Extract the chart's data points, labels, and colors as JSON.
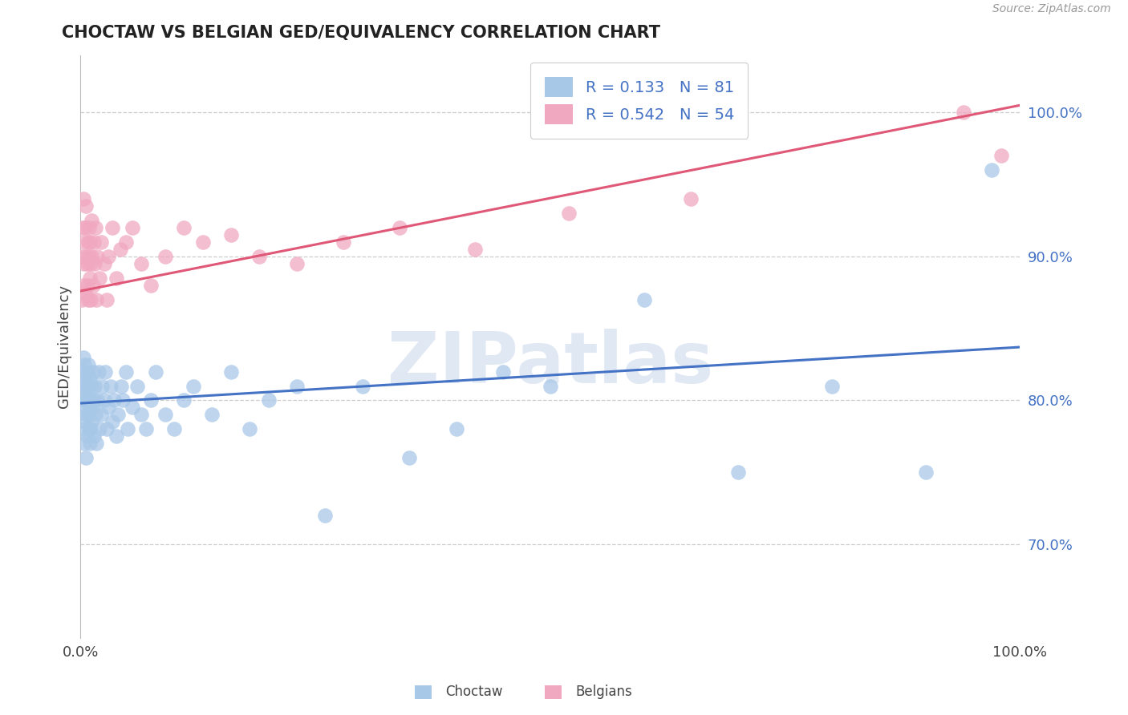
{
  "title": "CHOCTAW VS BELGIAN GED/EQUIVALENCY CORRELATION CHART",
  "source": "Source: ZipAtlas.com",
  "ylabel": "GED/Equivalency",
  "ytick_labels": [
    "70.0%",
    "80.0%",
    "90.0%",
    "100.0%"
  ],
  "ytick_values": [
    0.7,
    0.8,
    0.9,
    1.0
  ],
  "xmin": 0.0,
  "xmax": 1.0,
  "ymin": 0.635,
  "ymax": 1.04,
  "choctaw_color": "#a8c8e8",
  "belgian_color": "#f0a8c0",
  "choctaw_line_color": "#4472c4",
  "belgian_line_color": "#e05878",
  "legend_text_color": "#4472c4",
  "choctaw_R": 0.133,
  "choctaw_N": 81,
  "belgian_R": 0.542,
  "belgian_N": 54,
  "background_color": "#ffffff",
  "grid_color": "#cccccc",
  "title_color": "#222222",
  "choctaw_x": [
    0.001,
    0.002,
    0.002,
    0.003,
    0.003,
    0.003,
    0.004,
    0.004,
    0.004,
    0.005,
    0.005,
    0.005,
    0.006,
    0.006,
    0.006,
    0.007,
    0.007,
    0.007,
    0.008,
    0.008,
    0.008,
    0.009,
    0.009,
    0.01,
    0.01,
    0.01,
    0.011,
    0.011,
    0.012,
    0.012,
    0.013,
    0.013,
    0.014,
    0.014,
    0.015,
    0.016,
    0.017,
    0.018,
    0.019,
    0.02,
    0.022,
    0.023,
    0.025,
    0.026,
    0.028,
    0.03,
    0.032,
    0.034,
    0.036,
    0.038,
    0.04,
    0.043,
    0.045,
    0.048,
    0.05,
    0.055,
    0.06,
    0.065,
    0.07,
    0.075,
    0.08,
    0.09,
    0.1,
    0.11,
    0.12,
    0.14,
    0.16,
    0.18,
    0.2,
    0.23,
    0.26,
    0.3,
    0.35,
    0.4,
    0.45,
    0.5,
    0.6,
    0.7,
    0.8,
    0.9,
    0.97
  ],
  "choctaw_y": [
    0.82,
    0.81,
    0.8,
    0.795,
    0.78,
    0.83,
    0.77,
    0.81,
    0.825,
    0.8,
    0.785,
    0.815,
    0.76,
    0.79,
    0.81,
    0.8,
    0.82,
    0.775,
    0.79,
    0.81,
    0.825,
    0.78,
    0.8,
    0.77,
    0.795,
    0.815,
    0.78,
    0.8,
    0.81,
    0.785,
    0.795,
    0.82,
    0.775,
    0.8,
    0.81,
    0.79,
    0.77,
    0.8,
    0.82,
    0.78,
    0.79,
    0.81,
    0.8,
    0.82,
    0.78,
    0.795,
    0.81,
    0.785,
    0.8,
    0.775,
    0.79,
    0.81,
    0.8,
    0.82,
    0.78,
    0.795,
    0.81,
    0.79,
    0.78,
    0.8,
    0.82,
    0.79,
    0.78,
    0.8,
    0.81,
    0.79,
    0.82,
    0.78,
    0.8,
    0.81,
    0.72,
    0.81,
    0.76,
    0.78,
    0.82,
    0.81,
    0.87,
    0.75,
    0.81,
    0.75,
    0.96
  ],
  "belgian_x": [
    0.001,
    0.002,
    0.002,
    0.003,
    0.003,
    0.004,
    0.004,
    0.005,
    0.005,
    0.006,
    0.006,
    0.007,
    0.007,
    0.008,
    0.008,
    0.009,
    0.009,
    0.01,
    0.01,
    0.011,
    0.011,
    0.012,
    0.012,
    0.013,
    0.014,
    0.015,
    0.016,
    0.017,
    0.018,
    0.02,
    0.022,
    0.025,
    0.028,
    0.03,
    0.034,
    0.038,
    0.042,
    0.048,
    0.055,
    0.065,
    0.075,
    0.09,
    0.11,
    0.13,
    0.16,
    0.19,
    0.23,
    0.28,
    0.34,
    0.42,
    0.52,
    0.65,
    0.94,
    0.98
  ],
  "belgian_y": [
    0.87,
    0.92,
    0.9,
    0.94,
    0.88,
    0.91,
    0.895,
    0.92,
    0.875,
    0.9,
    0.935,
    0.88,
    0.895,
    0.91,
    0.87,
    0.9,
    0.92,
    0.885,
    0.91,
    0.895,
    0.87,
    0.9,
    0.925,
    0.88,
    0.91,
    0.895,
    0.92,
    0.87,
    0.9,
    0.885,
    0.91,
    0.895,
    0.87,
    0.9,
    0.92,
    0.885,
    0.905,
    0.91,
    0.92,
    0.895,
    0.88,
    0.9,
    0.92,
    0.91,
    0.915,
    0.9,
    0.895,
    0.91,
    0.92,
    0.905,
    0.93,
    0.94,
    1.0,
    0.97
  ],
  "choctaw_trendline_x": [
    0.0,
    1.0
  ],
  "choctaw_trendline_y": [
    0.798,
    0.837
  ],
  "belgian_trendline_x": [
    0.0,
    1.0
  ],
  "belgian_trendline_y": [
    0.876,
    1.005
  ]
}
